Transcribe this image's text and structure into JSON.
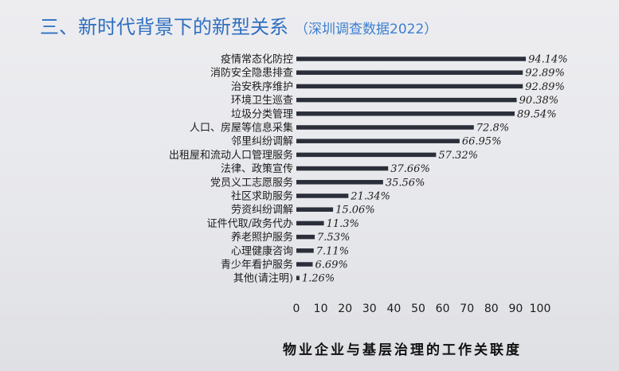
{
  "page": {
    "title": "三、新时代背景下的新型关系",
    "subtitle": "（深圳调查数据2022）"
  },
  "chart_data": {
    "type": "bar",
    "orientation": "horizontal",
    "xlabel": "物业企业与基层治理的工作关联度",
    "xlim": [
      0,
      100
    ],
    "xticks": [
      0,
      10,
      20,
      30,
      40,
      50,
      60,
      70,
      80,
      90,
      100
    ],
    "grid": false,
    "bar_color": "#2b2f3a",
    "categories": [
      "疫情常态化防控",
      "消防安全隐患排查",
      "治安秩序维护",
      "环境卫生巡查",
      "垃圾分类管理",
      "人口、房屋等信息采集",
      "邻里纠纷调解",
      "出租屋和流动人口管理服务",
      "法律、政策宣传",
      "党员义工志愿服务",
      "社区求助服务",
      "劳资纠纷调解",
      "证件代取/政务代办",
      "养老照护服务",
      "心理健康咨询",
      "青少年看护服务",
      "其他(请注明)"
    ],
    "values": [
      94.14,
      92.89,
      92.89,
      90.38,
      89.54,
      72.8,
      66.95,
      57.32,
      37.66,
      35.56,
      21.34,
      15.06,
      11.3,
      7.53,
      7.11,
      6.69,
      1.26
    ],
    "value_labels": [
      "94.14%",
      "92.89%",
      "92.89%",
      "90.38%",
      "89.54%",
      "72.8%",
      "66.95%",
      "57.32%",
      "37.66%",
      "35.56%",
      "21.34%",
      "15.06%",
      "11.3%",
      "7.53%",
      "7.11%",
      "6.69%",
      "1.26%"
    ]
  }
}
